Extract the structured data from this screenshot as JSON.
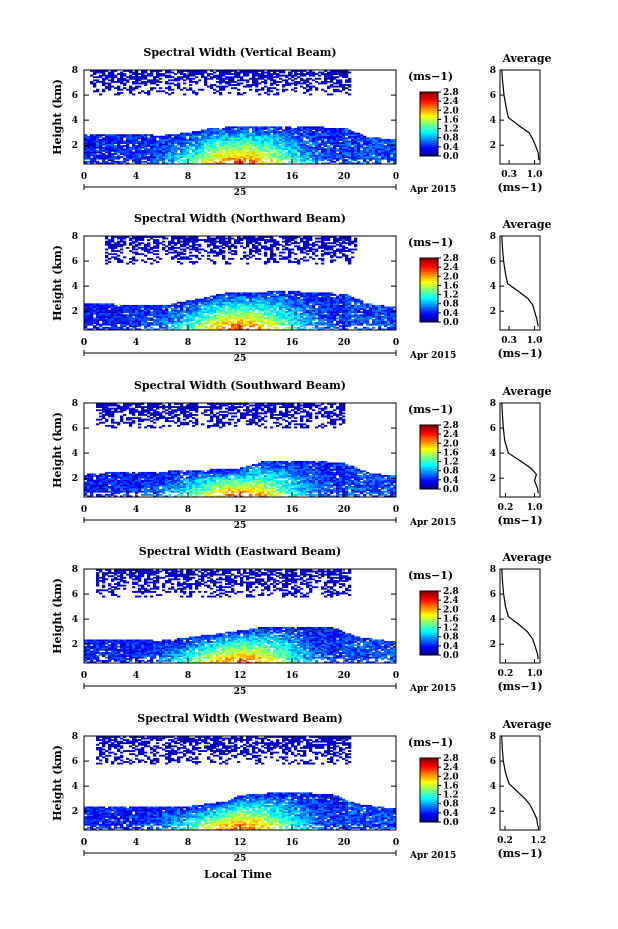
{
  "chart_data": {
    "type": "heatmap",
    "date_text": "Apr 2015",
    "day_label": "25",
    "xlabel": "Local Time",
    "x_ticks": [
      "0",
      "4",
      "8",
      "12",
      "16",
      "20",
      "0"
    ],
    "x_range_hours": [
      0,
      24
    ],
    "ylabel": "Height (km)",
    "y_ticks": [
      "2",
      "4",
      "6",
      "8"
    ],
    "y_range_km": [
      0.5,
      8.0
    ],
    "colorbar": {
      "unit": "(ms−1)",
      "ticks": [
        "2.8",
        "2.4",
        "2.0",
        "1.6",
        "1.2",
        "0.8",
        "0.4",
        "0.0"
      ],
      "range": [
        0.0,
        2.8
      ],
      "colormap": "jet"
    },
    "average": {
      "title": "Average",
      "ylim": [
        0.5,
        8.0
      ],
      "xunit": "(ms−1)",
      "y_ticks": [
        "2",
        "4",
        "6",
        "8"
      ]
    },
    "panels": [
      {
        "title": "Spectral Width (Vertical Beam)",
        "average_x_ticks": [
          "0.3",
          "1.0"
        ],
        "average_xlim": [
          0.05,
          1.15
        ],
        "upper_layer_km": [
          6.0,
          8.0
        ],
        "upper_layer_hours": [
          0.5,
          20.5
        ],
        "boundary_layer_top_km": [
          [
            0,
            2.9
          ],
          [
            6,
            2.8
          ],
          [
            8,
            3.0
          ],
          [
            10,
            3.4
          ],
          [
            12,
            3.5
          ],
          [
            16,
            3.5
          ],
          [
            20,
            3.4
          ],
          [
            22,
            2.6
          ],
          [
            24,
            2.5
          ]
        ],
        "average_profile": [
          [
            8.0,
            0.1
          ],
          [
            7.2,
            0.12
          ],
          [
            6.0,
            0.16
          ],
          [
            5.0,
            0.22
          ],
          [
            4.2,
            0.28
          ],
          [
            3.5,
            0.6
          ],
          [
            3.0,
            0.85
          ],
          [
            2.5,
            0.95
          ],
          [
            2.0,
            1.02
          ],
          [
            1.4,
            1.1
          ],
          [
            0.8,
            1.12
          ]
        ]
      },
      {
        "title": "Spectral Width (Northward Beam)",
        "average_x_ticks": [
          "0.3",
          "1.0"
        ],
        "average_xlim": [
          0.05,
          1.15
        ],
        "upper_layer_km": [
          5.8,
          8.0
        ],
        "upper_layer_hours": [
          1.5,
          21.0
        ],
        "boundary_layer_top_km": [
          [
            0,
            2.6
          ],
          [
            6,
            2.5
          ],
          [
            9,
            3.0
          ],
          [
            11,
            3.5
          ],
          [
            16,
            3.6
          ],
          [
            20,
            3.4
          ],
          [
            22,
            2.6
          ],
          [
            24,
            2.3
          ]
        ],
        "average_profile": [
          [
            8.0,
            0.1
          ],
          [
            7.0,
            0.12
          ],
          [
            6.0,
            0.15
          ],
          [
            5.0,
            0.2
          ],
          [
            4.2,
            0.26
          ],
          [
            3.6,
            0.55
          ],
          [
            3.0,
            0.82
          ],
          [
            2.5,
            0.95
          ],
          [
            2.0,
            1.0
          ],
          [
            1.4,
            1.06
          ],
          [
            0.8,
            1.1
          ]
        ]
      },
      {
        "title": "Spectral Width (Southward Beam)",
        "average_x_ticks": [
          "0.2",
          "1.0"
        ],
        "average_xlim": [
          0.05,
          1.15
        ],
        "upper_layer_km": [
          6.0,
          8.0
        ],
        "upper_layer_hours": [
          1.0,
          20.0
        ],
        "boundary_layer_top_km": [
          [
            0,
            2.4
          ],
          [
            8,
            2.6
          ],
          [
            12,
            2.8
          ],
          [
            14,
            3.4
          ],
          [
            18,
            3.4
          ],
          [
            20,
            3.2
          ],
          [
            22,
            2.4
          ],
          [
            24,
            2.2
          ]
        ],
        "average_profile": [
          [
            8.0,
            0.1
          ],
          [
            7.0,
            0.12
          ],
          [
            6.0,
            0.14
          ],
          [
            5.0,
            0.18
          ],
          [
            4.0,
            0.28
          ],
          [
            3.3,
            0.65
          ],
          [
            2.8,
            0.9
          ],
          [
            2.3,
            1.05
          ],
          [
            1.8,
            1.0
          ],
          [
            1.2,
            1.08
          ],
          [
            0.8,
            1.1
          ]
        ]
      },
      {
        "title": "Spectral Width (Eastward Beam)",
        "average_x_ticks": [
          "0.2",
          "1.0"
        ],
        "average_xlim": [
          0.05,
          1.15
        ],
        "upper_layer_km": [
          5.8,
          8.0
        ],
        "upper_layer_hours": [
          1.0,
          20.5
        ],
        "boundary_layer_top_km": [
          [
            0,
            2.4
          ],
          [
            6,
            2.3
          ],
          [
            10,
            2.8
          ],
          [
            14,
            3.4
          ],
          [
            19,
            3.4
          ],
          [
            21,
            2.6
          ],
          [
            24,
            2.2
          ]
        ],
        "average_profile": [
          [
            8.0,
            0.1
          ],
          [
            7.0,
            0.12
          ],
          [
            6.0,
            0.15
          ],
          [
            5.0,
            0.2
          ],
          [
            4.2,
            0.28
          ],
          [
            3.5,
            0.6
          ],
          [
            3.0,
            0.8
          ],
          [
            2.4,
            0.95
          ],
          [
            1.8,
            1.02
          ],
          [
            1.2,
            1.08
          ],
          [
            0.8,
            1.1
          ]
        ]
      },
      {
        "title": "Spectral Width (Westward Beam)",
        "average_x_ticks": [
          "0.2",
          "1.2"
        ],
        "average_xlim": [
          0.05,
          1.25
        ],
        "upper_layer_km": [
          5.8,
          8.0
        ],
        "upper_layer_hours": [
          1.0,
          20.5
        ],
        "boundary_layer_top_km": [
          [
            0,
            2.4
          ],
          [
            8,
            2.4
          ],
          [
            11,
            2.8
          ],
          [
            12,
            3.3
          ],
          [
            15,
            3.5
          ],
          [
            19,
            3.4
          ],
          [
            21,
            2.6
          ],
          [
            24,
            2.2
          ]
        ],
        "average_profile": [
          [
            8.0,
            0.1
          ],
          [
            7.0,
            0.12
          ],
          [
            6.0,
            0.15
          ],
          [
            5.0,
            0.22
          ],
          [
            4.2,
            0.32
          ],
          [
            3.5,
            0.6
          ],
          [
            3.0,
            0.8
          ],
          [
            2.5,
            0.95
          ],
          [
            2.0,
            1.05
          ],
          [
            1.4,
            1.15
          ],
          [
            0.8,
            1.18
          ]
        ]
      }
    ]
  }
}
